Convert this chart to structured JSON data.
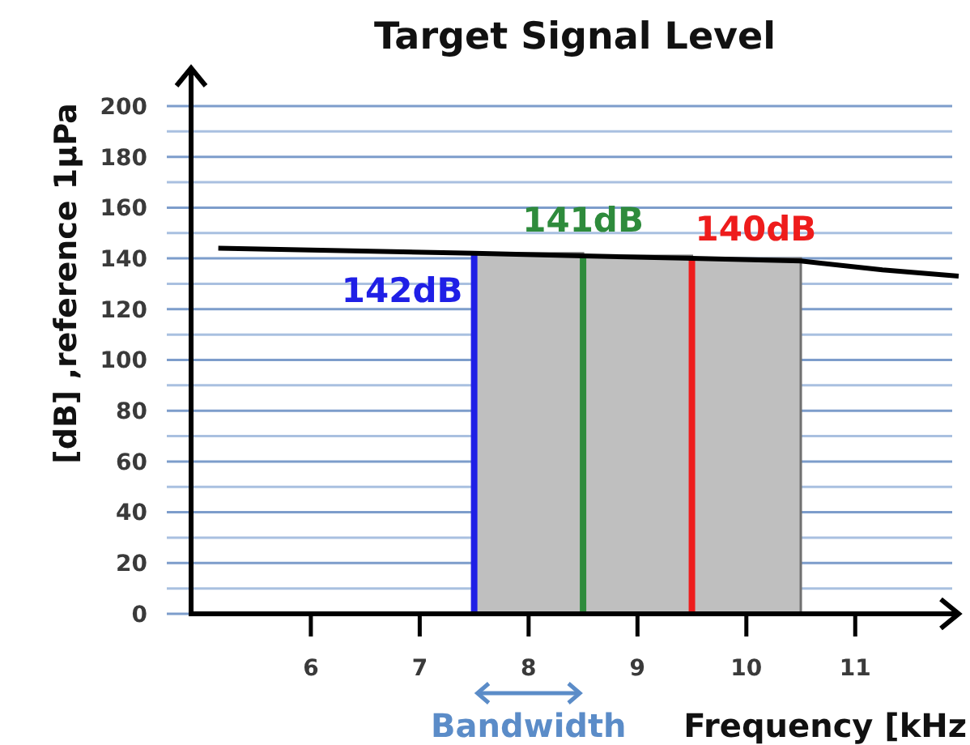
{
  "chart_data": {
    "type": "line",
    "title": "Target Signal Level",
    "xlabel": "Frequency [kHz",
    "ylabel": "[dB] ,reference 1μPa",
    "xlim": [
      4.9,
      11.95
    ],
    "ylim": [
      0,
      215
    ],
    "xticks": [
      6,
      7,
      8,
      9,
      10,
      11
    ],
    "yticks": [
      0,
      {
        "value": 10,
        "label": null
      },
      20,
      {
        "value": 30,
        "label": null
      },
      40,
      {
        "value": 50,
        "label": null
      },
      60,
      {
        "value": 70,
        "label": null
      },
      80,
      {
        "value": 90,
        "label": null
      },
      100,
      {
        "value": 110,
        "label": null
      },
      120,
      {
        "value": 130,
        "label": null
      },
      140,
      {
        "value": 150,
        "label": null
      },
      160,
      {
        "value": 170,
        "label": null
      },
      180,
      {
        "value": 190,
        "label": null
      },
      200
    ],
    "grid": "y",
    "series": [
      {
        "type": "bar",
        "color": "#bfbfbf",
        "x": [
          8,
          9,
          10
        ],
        "values": [
          142,
          141,
          140
        ]
      },
      {
        "name": "142dB",
        "color": "#1f1fe6",
        "x": [
          7.5,
          7.5
        ],
        "values": [
          0,
          142
        ]
      },
      {
        "name": "141dB",
        "color": "#2e8b3c",
        "x": [
          8.5,
          8.5
        ],
        "values": [
          0,
          141
        ]
      },
      {
        "name": "140dB",
        "color": "#ee1c1c",
        "x": [
          9.5,
          9.5
        ],
        "values": [
          0,
          140
        ]
      },
      {
        "color": "#000000",
        "x": [
          5.15,
          7.5,
          8.5,
          9.5,
          10.5,
          11.25,
          11.95
        ],
        "values": [
          144,
          142,
          141,
          140,
          139,
          135.5,
          133
        ]
      }
    ],
    "annotations": [
      "Bandwidth"
    ]
  }
}
